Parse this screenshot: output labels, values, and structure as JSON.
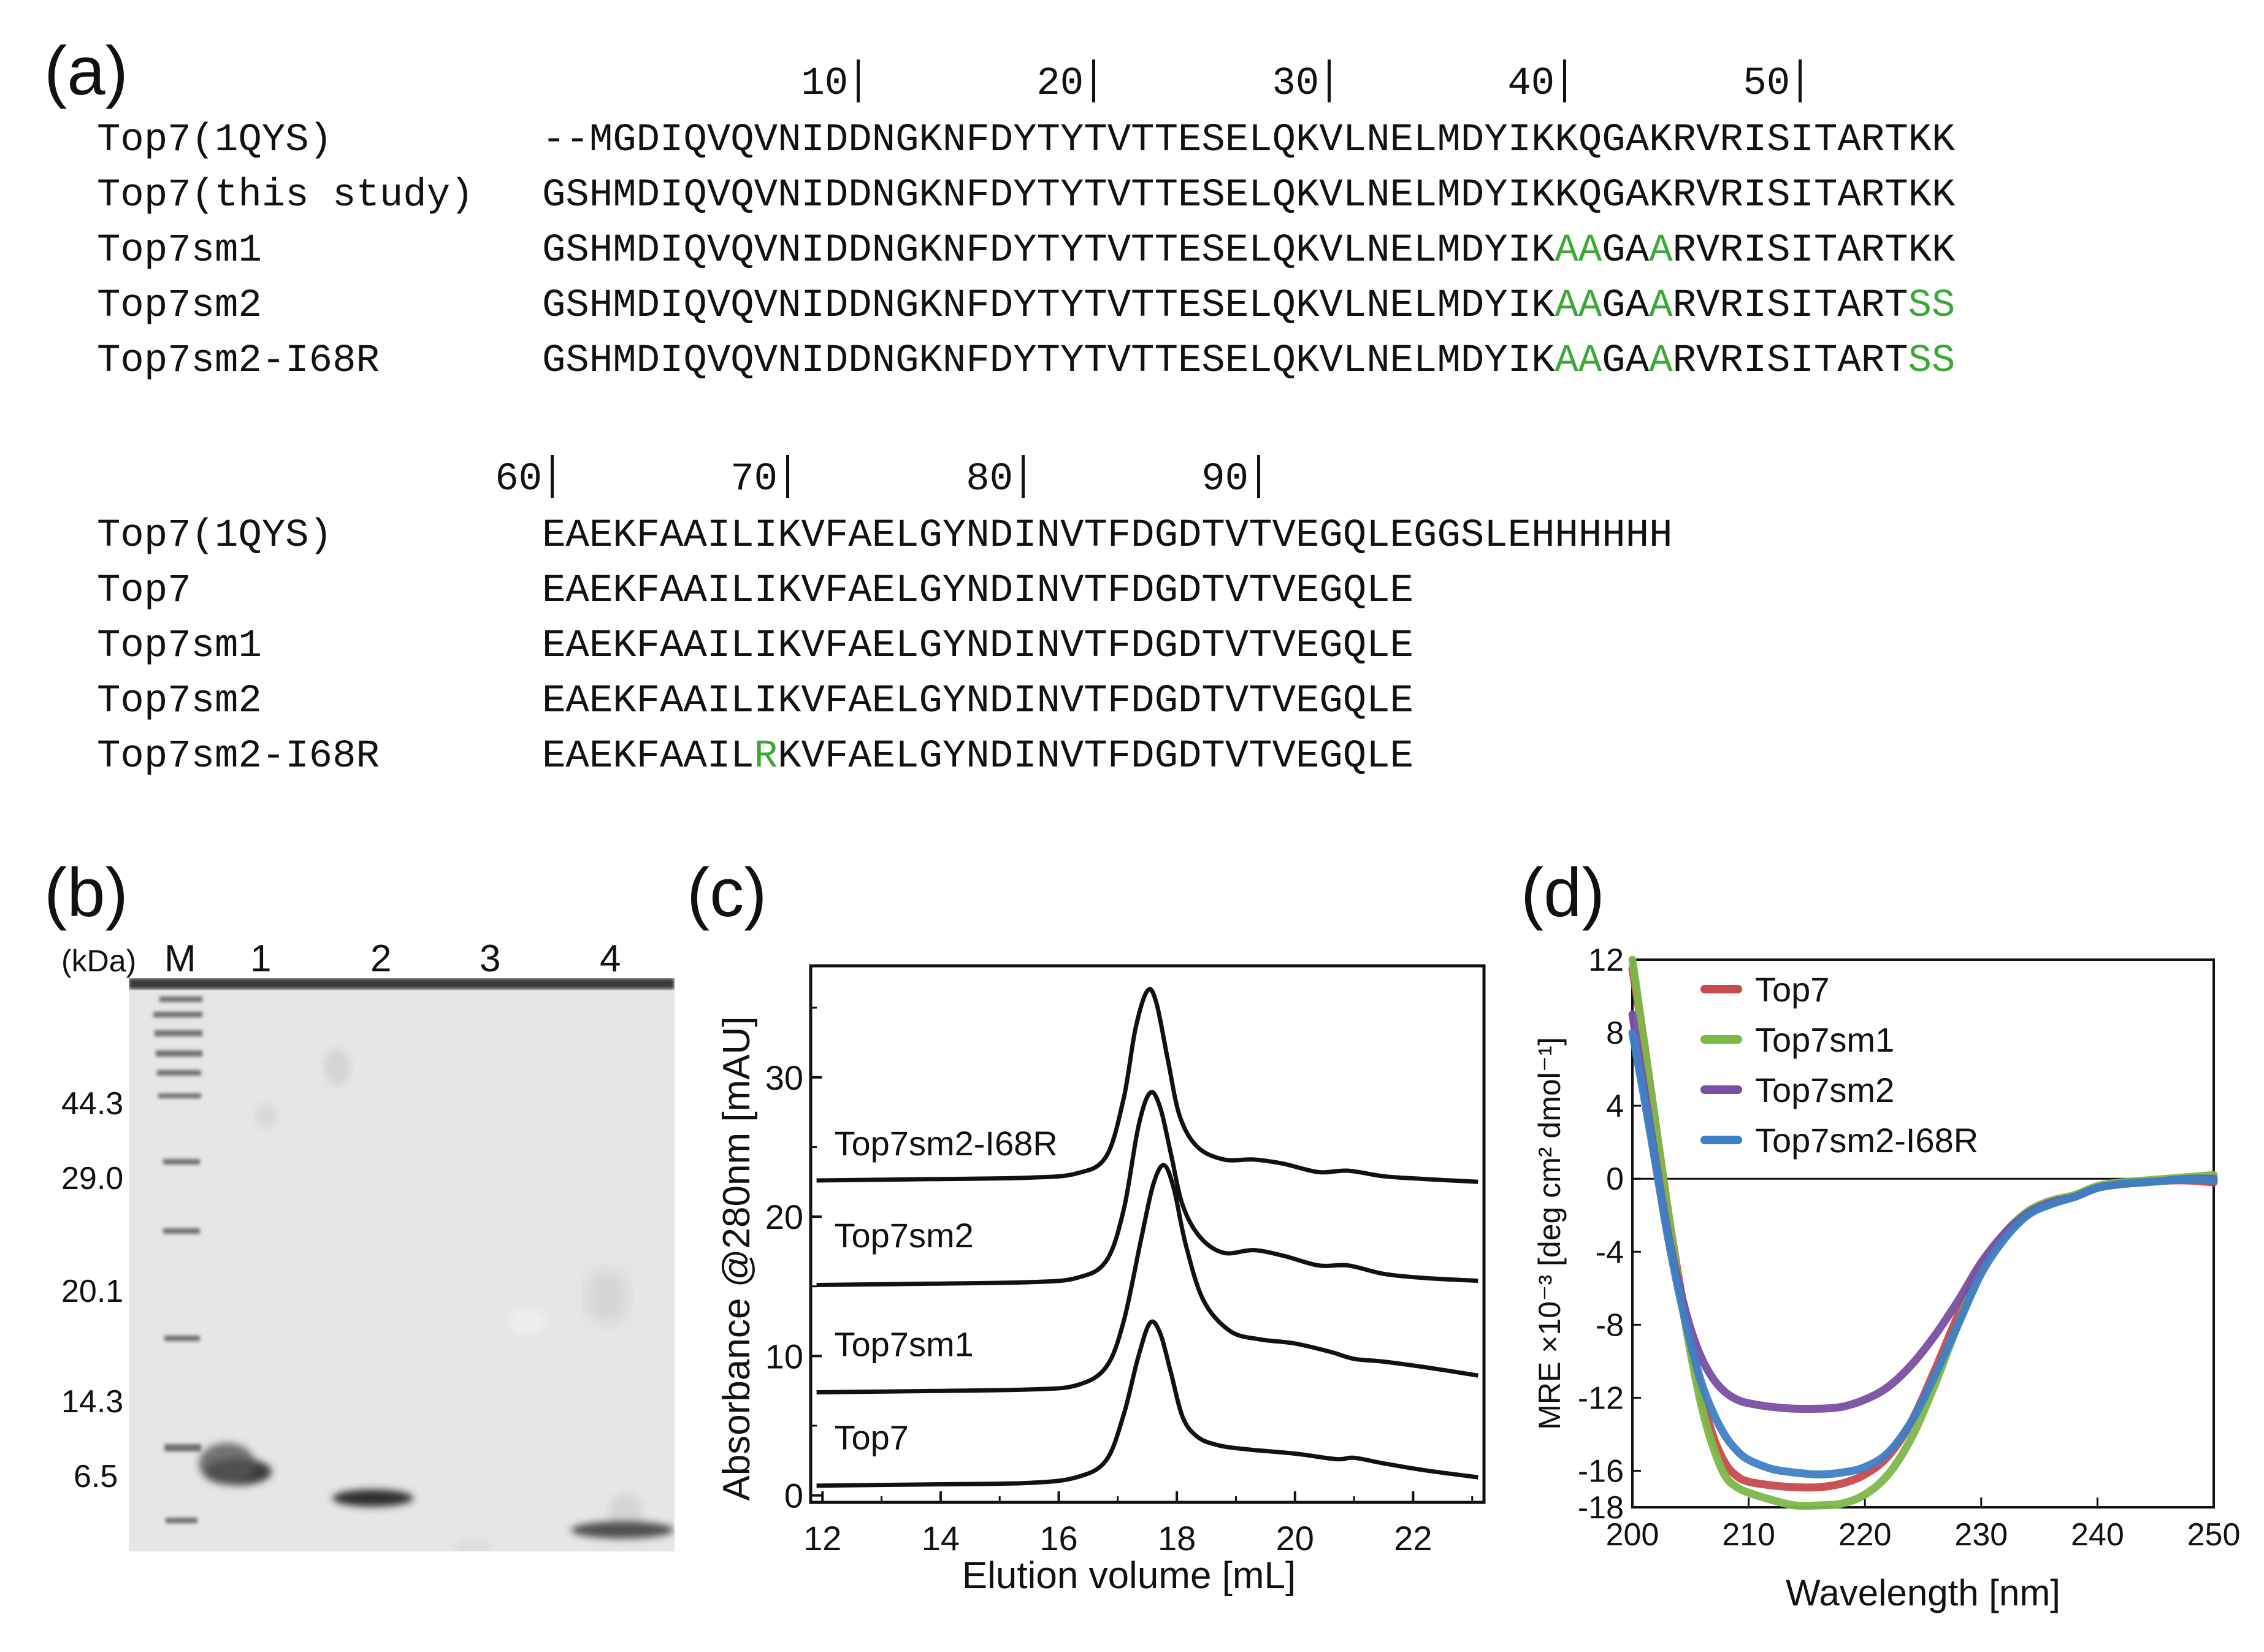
{
  "panels": {
    "a": {
      "label": "(a)",
      "ruler1": [
        "10",
        "20",
        "30",
        "40",
        "50"
      ],
      "rows1": [
        {
          "name": "Top7(1QYS)",
          "seq": [
            {
              "t": "--MGDIQVQVNIDDNGKNFDYTYTVTTESELQKVLNELMDYIKKQGAKRVRISITARTKK",
              "h": false
            }
          ]
        },
        {
          "name": "Top7(this study)",
          "seq": [
            {
              "t": "GSHMDIQVQVNIDDNGKNFDYTYTVTTESELQKVLNELMDYIKKQGAKRVRISITARTKK",
              "h": false
            }
          ]
        },
        {
          "name": "Top7sm1",
          "seq": [
            {
              "t": "GSHMDIQVQVNIDDNGKNFDYTYTVTTESELQKVLNELMDYIK",
              "h": false
            },
            {
              "t": "AA",
              "h": true
            },
            {
              "t": "GA",
              "h": false
            },
            {
              "t": "A",
              "h": true
            },
            {
              "t": "RVRISITARTKK",
              "h": false
            }
          ]
        },
        {
          "name": "Top7sm2",
          "seq": [
            {
              "t": "GSHMDIQVQVNIDDNGKNFDYTYTVTTESELQKVLNELMDYIK",
              "h": false
            },
            {
              "t": "AA",
              "h": true
            },
            {
              "t": "GA",
              "h": false
            },
            {
              "t": "A",
              "h": true
            },
            {
              "t": "RVRISITART",
              "h": false
            },
            {
              "t": "SS",
              "h": true
            }
          ]
        },
        {
          "name": "Top7sm2-I68R",
          "seq": [
            {
              "t": "GSHMDIQVQVNIDDNGKNFDYTYTVTTESELQKVLNELMDYIK",
              "h": false
            },
            {
              "t": "AA",
              "h": true
            },
            {
              "t": "GA",
              "h": false
            },
            {
              "t": "A",
              "h": true
            },
            {
              "t": "RVRISITART",
              "h": false
            },
            {
              "t": "SS",
              "h": true
            }
          ]
        }
      ],
      "ruler2": [
        "60",
        "70",
        "80",
        "90"
      ],
      "rows2": [
        {
          "name": "Top7(1QYS)",
          "seq": [
            {
              "t": "EAEKFAAILIKVFAELGYNDINVTFDGDTVTVEGQLEGGSLEHHHHHH",
              "h": false
            }
          ]
        },
        {
          "name": "Top7",
          "seq": [
            {
              "t": "EAEKFAAILIKVFAELGYNDINVTFDGDTVTVEGQLE",
              "h": false
            }
          ]
        },
        {
          "name": "Top7sm1",
          "seq": [
            {
              "t": "EAEKFAAILIKVFAELGYNDINVTFDGDTVTVEGQLE",
              "h": false
            }
          ]
        },
        {
          "name": "Top7sm2",
          "seq": [
            {
              "t": "EAEKFAAILIKVFAELGYNDINVTFDGDTVTVEGQLE",
              "h": false
            }
          ]
        },
        {
          "name": "Top7sm2-I68R",
          "seq": [
            {
              "t": "EAEKFAAIL",
              "h": false
            },
            {
              "t": "R",
              "h": true
            },
            {
              "t": "KVFAELGYNDINVTFDGDTVTVEGQLE",
              "h": false
            }
          ]
        }
      ],
      "highlight_color": "#3aa935"
    },
    "b": {
      "label": "(b)",
      "unit_label": "(kDa)",
      "lane_labels": [
        "M",
        "1",
        "2",
        "3",
        "4"
      ],
      "mw_markers": [
        "44.3",
        "29.0",
        "20.1",
        "14.3",
        "6.5"
      ]
    },
    "c": {
      "label": "(c)"
    },
    "d": {
      "label": "(d)"
    }
  },
  "chart_data": [
    {
      "type": "line",
      "panel": "c",
      "xlabel": "Elution volume [mL]",
      "ylabel": "Absorbance @280nm [mAU]",
      "xlim": [
        11.8,
        23.2
      ],
      "ylim": [
        -0.5,
        38
      ],
      "xticks": [
        "12",
        "14",
        "16",
        "18",
        "20",
        "22"
      ],
      "yticks": [
        "0",
        "10",
        "20",
        "30"
      ],
      "grid": false,
      "series": [
        {
          "name": "Top7",
          "label_xy": [
            12.2,
            3.3
          ],
          "x": [
            11.9,
            14,
            15.5,
            16.3,
            16.8,
            17.1,
            17.35,
            17.55,
            17.72,
            17.9,
            18.1,
            18.35,
            18.7,
            19.2,
            20.0,
            20.7,
            21.0,
            21.5,
            22.2,
            23.1
          ],
          "y": [
            0.7,
            0.8,
            0.9,
            1.3,
            2.5,
            5.8,
            10.0,
            12.4,
            11.6,
            8.8,
            5.6,
            4.2,
            3.6,
            3.3,
            3.0,
            2.6,
            2.7,
            2.3,
            1.8,
            1.3
          ]
        },
        {
          "name": "Top7sm1",
          "label_xy": [
            12.2,
            10.0
          ],
          "x": [
            11.9,
            14,
            15.5,
            16.3,
            16.8,
            17.1,
            17.4,
            17.6,
            17.78,
            17.95,
            18.15,
            18.45,
            18.9,
            19.4,
            20.0,
            20.6,
            21.0,
            21.5,
            22.2,
            23.1
          ],
          "y": [
            7.4,
            7.5,
            7.6,
            7.9,
            9.2,
            12.5,
            18.5,
            22.3,
            23.7,
            22.0,
            18.0,
            14.0,
            11.8,
            11.2,
            10.9,
            10.3,
            9.8,
            9.6,
            9.2,
            8.6
          ]
        },
        {
          "name": "Top7sm2",
          "label_xy": [
            12.2,
            17.8
          ],
          "x": [
            11.9,
            14,
            15.5,
            16.3,
            16.8,
            17.1,
            17.35,
            17.55,
            17.72,
            17.9,
            18.1,
            18.4,
            18.8,
            19.3,
            19.8,
            20.4,
            20.9,
            21.5,
            22.2,
            23.1
          ],
          "y": [
            15.1,
            15.2,
            15.3,
            15.6,
            16.8,
            20.5,
            26.5,
            28.9,
            27.8,
            24.5,
            20.8,
            18.5,
            17.4,
            17.6,
            17.2,
            16.5,
            16.5,
            15.9,
            15.6,
            15.4
          ]
        },
        {
          "name": "Top7sm2-I68R",
          "label_xy": [
            12.2,
            24.4
          ],
          "x": [
            11.9,
            14,
            15.5,
            16.3,
            16.8,
            17.1,
            17.3,
            17.5,
            17.65,
            17.85,
            18.05,
            18.35,
            18.8,
            19.3,
            19.8,
            20.4,
            20.9,
            21.5,
            22.2,
            23.1
          ],
          "y": [
            22.6,
            22.7,
            22.8,
            23.1,
            24.3,
            28.5,
            33.5,
            36.2,
            35.4,
            31.2,
            27.2,
            25.0,
            24.1,
            24.1,
            23.8,
            23.2,
            23.3,
            22.9,
            22.7,
            22.5
          ]
        }
      ]
    },
    {
      "type": "line",
      "panel": "d",
      "xlabel": "Wavelength [nm]",
      "ylabel": "MRE ×10⁻³ [deg cm² dmol⁻¹]",
      "xlim": [
        200,
        250
      ],
      "ylim": [
        -18,
        12
      ],
      "xticks": [
        "200",
        "210",
        "220",
        "230",
        "240",
        "250"
      ],
      "yticks": [
        "12",
        "8",
        "4",
        "0",
        "-4",
        "-8",
        "-12",
        "-16",
        "-18"
      ],
      "zero_line": true,
      "grid": false,
      "legend_position": "top-left",
      "series": [
        {
          "name": "Top7",
          "color": "#c94a4c",
          "x": [
            200,
            201,
            202,
            203,
            204,
            205,
            206,
            207,
            208,
            209,
            210,
            212,
            214,
            216,
            218,
            220,
            222,
            224,
            226,
            228,
            230,
            232,
            234,
            236,
            238,
            240,
            242,
            244,
            246,
            248,
            250
          ],
          "y": [
            11.5,
            7.5,
            3.0,
            -1.5,
            -5.5,
            -9.0,
            -12.0,
            -14.2,
            -15.6,
            -16.3,
            -16.6,
            -16.8,
            -16.9,
            -16.9,
            -16.7,
            -16.2,
            -15.2,
            -13.3,
            -10.5,
            -7.5,
            -4.8,
            -3.1,
            -1.8,
            -1.3,
            -1.0,
            -0.5,
            -0.3,
            -0.2,
            -0.1,
            -0.1,
            -0.2
          ]
        },
        {
          "name": "Top7sm1",
          "color": "#7db84a",
          "x": [
            200,
            201,
            202,
            203,
            204,
            205,
            206,
            207,
            208,
            209,
            210,
            212,
            214,
            216,
            218,
            220,
            222,
            224,
            226,
            228,
            230,
            232,
            234,
            236,
            238,
            240,
            242,
            244,
            246,
            248,
            250
          ],
          "y": [
            12.0,
            7.5,
            3.0,
            -1.5,
            -5.8,
            -9.5,
            -12.6,
            -14.8,
            -16.3,
            -16.9,
            -17.2,
            -17.6,
            -17.9,
            -17.9,
            -17.8,
            -17.3,
            -16.2,
            -14.2,
            -11.3,
            -8.0,
            -5.0,
            -3.0,
            -1.8,
            -1.2,
            -0.9,
            -0.4,
            -0.2,
            -0.1,
            0.0,
            0.1,
            0.2
          ]
        },
        {
          "name": "Top7sm2",
          "color": "#7a4ea3",
          "x": [
            200,
            201,
            202,
            203,
            204,
            205,
            206,
            207,
            208,
            209,
            210,
            212,
            214,
            216,
            218,
            220,
            222,
            224,
            226,
            228,
            230,
            232,
            234,
            236,
            238,
            240,
            242,
            244,
            246,
            248,
            250
          ],
          "y": [
            9.0,
            5.0,
            1.0,
            -2.8,
            -5.8,
            -8.2,
            -9.9,
            -11.0,
            -11.7,
            -12.1,
            -12.3,
            -12.5,
            -12.6,
            -12.6,
            -12.5,
            -12.1,
            -11.4,
            -10.2,
            -8.6,
            -6.7,
            -4.6,
            -3.0,
            -1.9,
            -1.3,
            -1.0,
            -0.5,
            -0.3,
            -0.2,
            -0.1,
            0.0,
            0.0
          ]
        },
        {
          "name": "Top7sm2-I68R",
          "color": "#3f7fc4",
          "x": [
            200,
            201,
            202,
            203,
            204,
            205,
            206,
            207,
            208,
            209,
            210,
            212,
            214,
            216,
            218,
            220,
            222,
            224,
            226,
            228,
            230,
            232,
            234,
            236,
            238,
            240,
            242,
            244,
            246,
            248,
            250
          ],
          "y": [
            8.0,
            4.5,
            0.8,
            -3.0,
            -6.2,
            -9.0,
            -11.3,
            -12.9,
            -14.1,
            -14.9,
            -15.4,
            -15.9,
            -16.1,
            -16.2,
            -16.1,
            -15.8,
            -15.0,
            -13.3,
            -10.8,
            -8.0,
            -5.2,
            -3.3,
            -2.0,
            -1.4,
            -1.0,
            -0.5,
            -0.3,
            -0.2,
            -0.1,
            0.0,
            -0.1
          ]
        }
      ]
    }
  ]
}
